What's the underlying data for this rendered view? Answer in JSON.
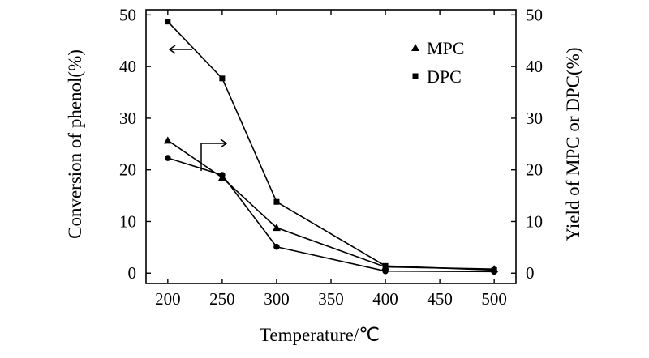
{
  "chart_data": {
    "type": "line",
    "xlabel": "Temperature/℃",
    "ylabel_left": "Conversion of phenol(%)",
    "ylabel_right": "Yield of MPC or DPC(%)",
    "x_ticks": [
      200,
      250,
      300,
      350,
      400,
      450,
      500
    ],
    "y_ticks": [
      0,
      10,
      20,
      30,
      40,
      50
    ],
    "xlim": [
      180,
      520
    ],
    "ylim": [
      -2,
      51
    ],
    "series": [
      {
        "name": "MPC",
        "marker": "triangle",
        "axis": "right",
        "x": [
          200,
          250,
          300,
          400,
          500
        ],
        "y": [
          25.7,
          18.5,
          8.8,
          1.2,
          0.8
        ]
      },
      {
        "name": "DPC",
        "marker": "square",
        "axis": "left",
        "x": [
          200,
          250,
          300,
          400,
          500
        ],
        "y": [
          48.7,
          37.7,
          13.8,
          1.4,
          0.6
        ]
      },
      {
        "name": "",
        "marker": "circle",
        "axis": "left",
        "x": [
          200,
          250,
          300,
          400,
          500
        ],
        "y": [
          22.3,
          19.0,
          5.1,
          0.4,
          0.3
        ]
      }
    ],
    "legend": [
      "MPC",
      "DPC"
    ],
    "legend_position": "top-right",
    "grid": false
  }
}
